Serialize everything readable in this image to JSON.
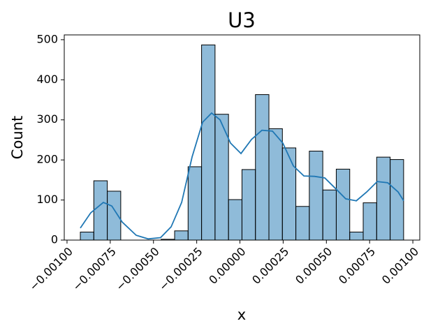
{
  "chart_data": {
    "type": "histogram",
    "title": "U3",
    "x_label": "x",
    "y_label": "Count",
    "color": "#1f77b4",
    "bar_alpha": 0.5,
    "bins": [
      -0.000923,
      -0.0008451,
      -0.0007672,
      -0.0006893,
      -0.0006114,
      -0.0005335,
      -0.0004556,
      -0.0003777,
      -0.0002998,
      -0.0002219,
      -0.000144,
      -6.61e-05,
      1.18e-05,
      8.97e-05,
      0.0001676,
      0.0002455,
      0.0003234,
      0.0004013,
      0.0004792,
      0.0005571,
      0.000635,
      0.0007129,
      0.0007908,
      0.0008687,
      0.0009466
    ],
    "values": [
      20,
      148,
      122,
      0,
      0,
      0,
      2,
      23,
      183,
      487,
      314,
      101,
      176,
      363,
      278,
      230,
      84,
      222,
      125,
      177,
      20,
      93,
      207,
      201
    ],
    "kde": {
      "color": "#1f77b4",
      "x": [
        -0.000923,
        -0.000863,
        -0.00079,
        -0.000741,
        -0.000681,
        -0.0006,
        -0.000531,
        -0.000459,
        -0.000398,
        -0.000337,
        -0.000277,
        -0.000216,
        -0.000164,
        -0.000115,
        -5.45e-05,
        6.1e-06,
        6.67e-05,
        0.000127,
        0.000188,
        0.000248,
        0.000309,
        0.00037,
        0.000431,
        0.000491,
        0.000552,
        0.000612,
        0.000673,
        0.000733,
        0.000794,
        0.000855,
        0.000915,
        0.000947
      ],
      "values": [
        30,
        68,
        94,
        85,
        45,
        12,
        3,
        6,
        33,
        94,
        207,
        294,
        317,
        300,
        242,
        216,
        251,
        274,
        272,
        242,
        185,
        160,
        159,
        155,
        129,
        103,
        98,
        120,
        146,
        143,
        120,
        98
      ]
    },
    "xlim": [
      -0.001016,
      0.00104
    ],
    "ylim": [
      0,
      512
    ],
    "xticks": [
      {
        "value": -0.001,
        "label": "−0.00100"
      },
      {
        "value": -0.00075,
        "label": "−0.00075"
      },
      {
        "value": -0.0005,
        "label": "−0.00050"
      },
      {
        "value": -0.00025,
        "label": "−0.00025"
      },
      {
        "value": 0,
        "label": "0.00000"
      },
      {
        "value": 0.00025,
        "label": "0.00025"
      },
      {
        "value": 0.0005,
        "label": "0.00050"
      },
      {
        "value": 0.00075,
        "label": "0.00075"
      },
      {
        "value": 0.001,
        "label": "0.00100"
      }
    ],
    "yticks": [
      0,
      100,
      200,
      300,
      400,
      500
    ]
  }
}
